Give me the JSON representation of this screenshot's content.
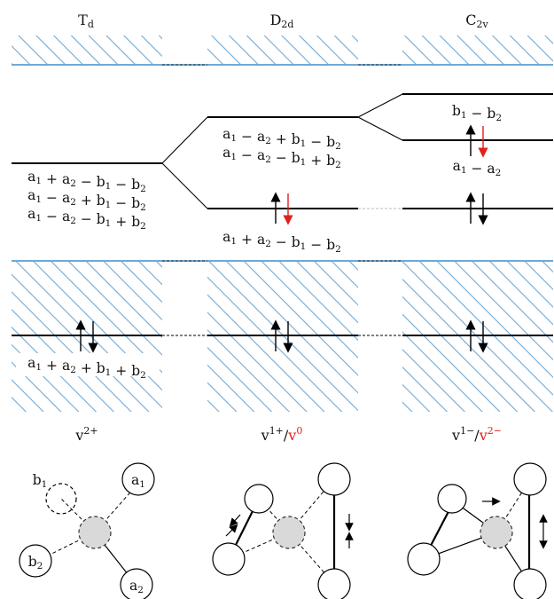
{
  "colors": {
    "hatch": "#6fa9d6",
    "level": "#000000",
    "spin_down_highlight": "#e0201b",
    "vacancy_fill": "#d9d9d9"
  },
  "columns": [
    {
      "symmetry_base": "T",
      "symmetry_sub": "d",
      "charge_label_base": "v",
      "charge_label_sup": "2+",
      "charge_label_alt_base": "",
      "charge_label_alt_sup": ""
    },
    {
      "symmetry_base": "D",
      "symmetry_sub": "2d",
      "charge_label_base": "v",
      "charge_label_sup": "1+",
      "charge_label_sep": "/",
      "charge_label_alt_base": "v",
      "charge_label_alt_sup": "0"
    },
    {
      "symmetry_base": "C",
      "symmetry_sub": "2v",
      "charge_label_base": "v",
      "charge_label_sup": "1−",
      "charge_label_sep": "/",
      "charge_label_alt_base": "v",
      "charge_label_alt_sup": "2−"
    }
  ],
  "levels": {
    "td_upper": [
      "a1 + a2 − b1 − b2",
      "a1 − a2 + b1 − b2",
      "a1 − a2 − b1 + b2"
    ],
    "td_lower": "a1 + a2 + b1 + b2",
    "d2d_upper": [
      "a1 − a2 + b1 − b2",
      "a1 − a2 − b1 + b2"
    ],
    "d2d_lower": "a1 + a2 − b1 − b2",
    "c2v_top": "b1 − b2",
    "c2v_mid": "a1 − a2"
  },
  "atom_labels": {
    "b1": "b1",
    "a1": "a1",
    "b2": "b2",
    "a2": "a2"
  }
}
